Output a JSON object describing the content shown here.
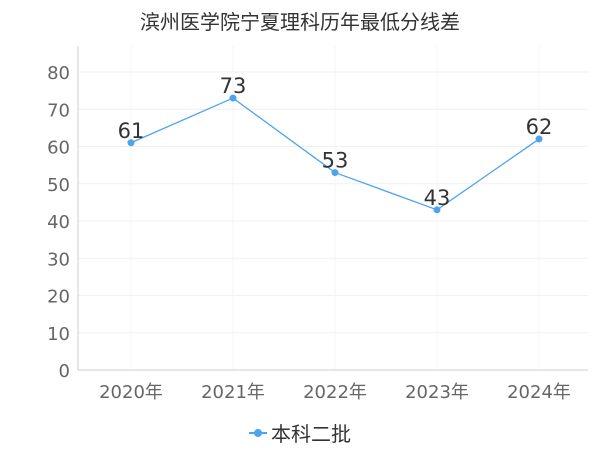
{
  "chart_data": {
    "type": "line",
    "title": "滨州医学院宁夏理科历年最低分线差",
    "categories": [
      "2020年",
      "2021年",
      "2022年",
      "2023年",
      "2024年"
    ],
    "series": [
      {
        "name": "本科二批",
        "values": [
          61,
          73,
          53,
          43,
          62
        ],
        "color": "#4da3ee"
      }
    ],
    "ylim": [
      0,
      80
    ],
    "yticks": [
      0,
      10,
      20,
      30,
      40,
      50,
      60,
      70,
      80
    ],
    "grid": true,
    "legend_position": "bottom-center",
    "data_labels": true
  }
}
